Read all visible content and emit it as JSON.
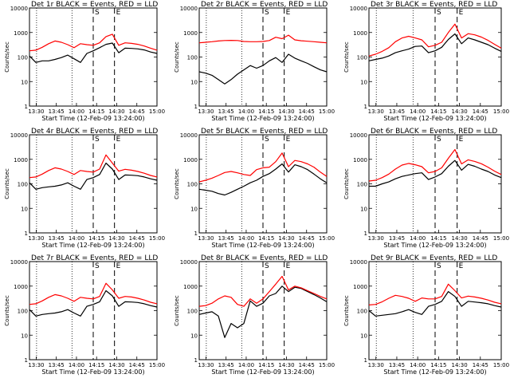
{
  "chart_data": [
    {
      "type": "line",
      "title": "Det 1r  BLACK = Events, RED = LLD",
      "xlabel": "Start Time (12-Feb-09 13:24:00)",
      "ylabel": "Counts/sec",
      "yscale": "log",
      "ylim": [
        1,
        10000
      ],
      "xticks": [
        "13:30",
        "13:45",
        "14:00",
        "14:15",
        "14:30",
        "14:45",
        "15:00"
      ],
      "markers": [
        "S",
        "E"
      ],
      "series": [
        {
          "name": "Events",
          "color": "#000000",
          "values": [
            110,
            60,
            70,
            70,
            80,
            95,
            120,
            85,
            60,
            140,
            180,
            240,
            330,
            370,
            150,
            230,
            225,
            215,
            195,
            160,
            140
          ]
        },
        {
          "name": "LLD",
          "color": "#ff0000",
          "values": [
            180,
            190,
            250,
            350,
            450,
            400,
            320,
            240,
            350,
            320,
            300,
            380,
            680,
            850,
            300,
            380,
            360,
            330,
            280,
            230,
            190
          ]
        }
      ]
    },
    {
      "type": "line",
      "title": "Det 2r  BLACK = Events, RED = LLD",
      "xlabel": "Start Time (12-Feb-09 13:24:00)",
      "ylabel": "Counts/sec",
      "yscale": "log",
      "ylim": [
        1,
        10000
      ],
      "xticks": [
        "13:30",
        "13:45",
        "14:00",
        "14:15",
        "14:30",
        "14:45",
        "15:00"
      ],
      "markers": [
        "S",
        "E"
      ],
      "series": [
        {
          "name": "Events",
          "color": "#000000",
          "values": [
            25,
            22,
            18,
            12,
            8,
            12,
            20,
            30,
            45,
            35,
            45,
            70,
            95,
            60,
            130,
            90,
            70,
            55,
            40,
            30,
            25
          ]
        },
        {
          "name": "LLD",
          "color": "#ff0000",
          "values": [
            380,
            400,
            420,
            450,
            470,
            480,
            470,
            430,
            420,
            420,
            430,
            470,
            640,
            560,
            780,
            500,
            460,
            440,
            420,
            400,
            380
          ]
        }
      ]
    },
    {
      "type": "line",
      "title": "Det 3r  BLACK = Events, RED = LLD",
      "xlabel": "Start Time (12-Feb-09 13:24:00)",
      "ylabel": "Counts/sec",
      "yscale": "log",
      "ylim": [
        1,
        10000
      ],
      "xticks": [
        "13:30",
        "13:45",
        "14:00",
        "14:15",
        "14:30",
        "14:45",
        "15:00"
      ],
      "markers": [
        "S",
        "E"
      ],
      "series": [
        {
          "name": "Events",
          "color": "#000000",
          "values": [
            70,
            80,
            90,
            110,
            150,
            180,
            210,
            270,
            280,
            150,
            180,
            250,
            520,
            880,
            350,
            600,
            500,
            400,
            320,
            230,
            170
          ]
        },
        {
          "name": "LLD",
          "color": "#ff0000",
          "values": [
            110,
            130,
            170,
            240,
            420,
            600,
            700,
            600,
            500,
            260,
            300,
            400,
            1000,
            2200,
            600,
            900,
            800,
            650,
            480,
            330,
            230
          ]
        }
      ]
    },
    {
      "type": "line",
      "title": "Det 4r  BLACK = Events, RED = LLD",
      "xlabel": "Start Time (12-Feb-09 13:24:00)",
      "ylabel": "Counts/sec",
      "yscale": "log",
      "ylim": [
        1,
        10000
      ],
      "xticks": [
        "13:30",
        "13:45",
        "14:00",
        "14:15",
        "14:30",
        "14:45",
        "15:00"
      ],
      "markers": [
        "S",
        "E"
      ],
      "series": [
        {
          "name": "Events",
          "color": "#000000",
          "values": [
            110,
            60,
            70,
            75,
            80,
            90,
            110,
            80,
            60,
            150,
            180,
            240,
            700,
            400,
            150,
            230,
            225,
            215,
            190,
            160,
            140
          ]
        },
        {
          "name": "LLD",
          "color": "#ff0000",
          "values": [
            180,
            190,
            250,
            350,
            450,
            400,
            320,
            240,
            350,
            320,
            300,
            400,
            1500,
            700,
            330,
            390,
            360,
            320,
            270,
            220,
            190
          ]
        }
      ]
    },
    {
      "type": "line",
      "title": "Det 5r  BLACK = Events, RED = LLD",
      "xlabel": "Start Time (12-Feb-09 13:24:00)",
      "ylabel": "Counts/sec",
      "yscale": "log",
      "ylim": [
        1,
        10000
      ],
      "xticks": [
        "13:30",
        "13:45",
        "14:00",
        "14:15",
        "14:30",
        "14:45",
        "15:00"
      ],
      "markers": [
        "S",
        "E"
      ],
      "series": [
        {
          "name": "Events",
          "color": "#000000",
          "values": [
            60,
            55,
            50,
            40,
            35,
            45,
            60,
            80,
            110,
            140,
            200,
            260,
            400,
            650,
            300,
            600,
            500,
            380,
            250,
            160,
            110
          ]
        },
        {
          "name": "LLD",
          "color": "#ff0000",
          "values": [
            120,
            140,
            170,
            220,
            290,
            320,
            280,
            240,
            220,
            380,
            450,
            480,
            800,
            1800,
            500,
            900,
            800,
            650,
            480,
            300,
            200
          ]
        }
      ]
    },
    {
      "type": "line",
      "title": "Det 6r  BLACK = Events, RED = LLD",
      "xlabel": "Start Time (12-Feb-09 13:24:00)",
      "ylabel": "Counts/sec",
      "yscale": "log",
      "ylim": [
        1,
        10000
      ],
      "xticks": [
        "13:30",
        "13:45",
        "14:00",
        "14:15",
        "14:30",
        "14:45",
        "15:00"
      ],
      "markers": [
        "S",
        "E"
      ],
      "series": [
        {
          "name": "Events",
          "color": "#000000",
          "values": [
            80,
            80,
            100,
            120,
            160,
            200,
            230,
            260,
            280,
            150,
            190,
            260,
            520,
            900,
            360,
            620,
            520,
            400,
            320,
            230,
            180
          ]
        },
        {
          "name": "LLD",
          "color": "#ff0000",
          "values": [
            130,
            140,
            180,
            250,
            400,
            580,
            680,
            600,
            500,
            280,
            320,
            450,
            1100,
            2500,
            650,
            950,
            820,
            660,
            480,
            330,
            240
          ]
        }
      ]
    },
    {
      "type": "line",
      "title": "Det 7r  BLACK = Events, RED = LLD",
      "xlabel": "Start Time (12-Feb-09 13:24:00)",
      "ylabel": "Counts/sec",
      "yscale": "log",
      "ylim": [
        1,
        10000
      ],
      "xticks": [
        "13:30",
        "13:45",
        "14:00",
        "14:15",
        "14:30",
        "14:45",
        "15:00"
      ],
      "markers": [
        "S",
        "E"
      ],
      "series": [
        {
          "name": "Events",
          "color": "#000000",
          "values": [
            110,
            60,
            70,
            75,
            80,
            90,
            110,
            80,
            60,
            150,
            180,
            230,
            650,
            400,
            150,
            230,
            225,
            215,
            190,
            160,
            140
          ]
        },
        {
          "name": "LLD",
          "color": "#ff0000",
          "values": [
            180,
            190,
            250,
            350,
            450,
            400,
            320,
            240,
            350,
            320,
            300,
            380,
            1300,
            700,
            320,
            380,
            360,
            320,
            270,
            220,
            190
          ]
        }
      ]
    },
    {
      "type": "line",
      "title": "Det 8r  BLACK = Events, RED = LLD",
      "xlabel": "Start Time (12-Feb-09 13:24:00)",
      "ylabel": "Counts/sec",
      "yscale": "log",
      "ylim": [
        1,
        10000
      ],
      "xticks": [
        "13:30",
        "13:45",
        "14:00",
        "14:15",
        "14:30",
        "14:45",
        "15:00"
      ],
      "markers": [
        "S",
        "E"
      ],
      "series": [
        {
          "name": "Events",
          "color": "#000000",
          "values": [
            70,
            80,
            90,
            60,
            8,
            30,
            20,
            30,
            250,
            150,
            200,
            400,
            500,
            1000,
            600,
            900,
            800,
            600,
            450,
            330,
            230
          ]
        },
        {
          "name": "LLD",
          "color": "#ff0000",
          "values": [
            150,
            160,
            200,
            300,
            400,
            350,
            180,
            150,
            300,
            200,
            300,
            600,
            1200,
            2500,
            700,
            1000,
            850,
            650,
            500,
            380,
            300
          ]
        }
      ]
    },
    {
      "type": "line",
      "title": "Det 9r  BLACK = Events, RED = LLD",
      "xlabel": "Start Time (12-Feb-09 13:24:00)",
      "ylabel": "Counts/sec",
      "yscale": "log",
      "ylim": [
        1,
        10000
      ],
      "xticks": [
        "13:30",
        "13:45",
        "14:00",
        "14:15",
        "14:30",
        "14:45",
        "15:00"
      ],
      "markers": [
        "S",
        "E"
      ],
      "series": [
        {
          "name": "Events",
          "color": "#000000",
          "values": [
            100,
            60,
            65,
            70,
            75,
            90,
            110,
            85,
            70,
            150,
            180,
            240,
            600,
            380,
            150,
            240,
            225,
            210,
            190,
            160,
            140
          ]
        },
        {
          "name": "LLD",
          "color": "#ff0000",
          "values": [
            170,
            180,
            230,
            320,
            420,
            380,
            320,
            240,
            330,
            300,
            300,
            380,
            1200,
            650,
            330,
            390,
            360,
            320,
            270,
            220,
            190
          ]
        }
      ]
    }
  ]
}
